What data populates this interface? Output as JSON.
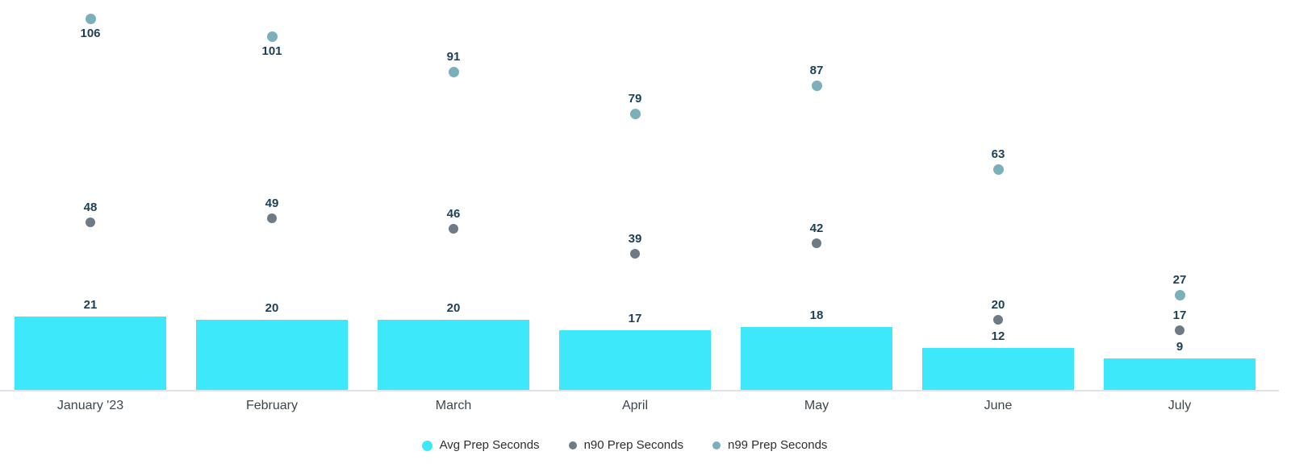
{
  "chart_data": {
    "type": "bar",
    "title": "",
    "xlabel": "",
    "ylabel": "",
    "categories": [
      "January '23",
      "February",
      "March",
      "April",
      "May",
      "June",
      "July"
    ],
    "series": [
      {
        "name": "Avg Prep Seconds",
        "render": "bar",
        "color": "#3ce8fa",
        "values": [
          21,
          20,
          20,
          17,
          18,
          12,
          9
        ]
      },
      {
        "name": "n90 Prep Seconds",
        "render": "point",
        "color": "#6e7b86",
        "values": [
          48,
          49,
          46,
          39,
          42,
          20,
          17
        ],
        "label_below": [
          false,
          false,
          false,
          false,
          false,
          false,
          false
        ]
      },
      {
        "name": "n99 Prep Seconds",
        "render": "point",
        "color": "#7bafba",
        "values": [
          106,
          101,
          91,
          79,
          87,
          63,
          27
        ],
        "label_below": [
          true,
          true,
          false,
          false,
          false,
          false,
          false
        ]
      }
    ],
    "ylim": [
      0,
      112
    ],
    "grid": false,
    "legend_position": "bottom",
    "value_label_color": "#1d3f55",
    "category_label_color": "#3b4650",
    "axis_line_color": "#dde3ed",
    "legend_text_color": "#2e2e2e"
  }
}
